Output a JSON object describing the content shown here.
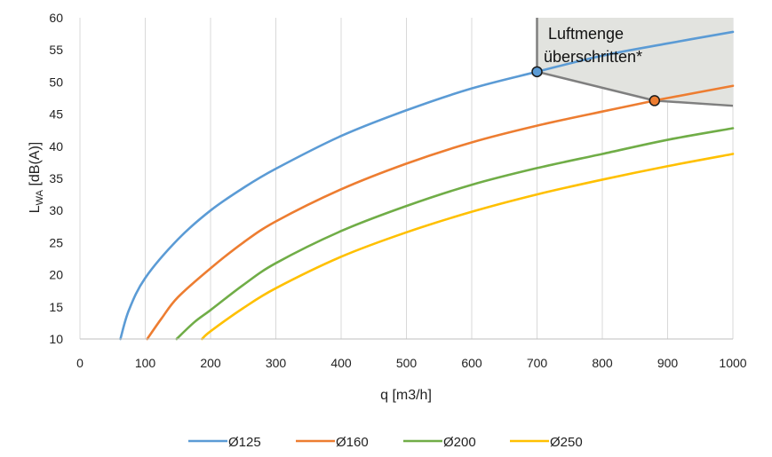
{
  "chart_data": {
    "type": "line",
    "xlabel": "q [m3/h]",
    "ylabel_main": "L",
    "ylabel_sub": "WA",
    "ylabel_rest": " [dB(A)]",
    "xlim": [
      0,
      1000
    ],
    "ylim": [
      10,
      60
    ],
    "x_ticks": [
      0,
      100,
      200,
      300,
      400,
      500,
      600,
      700,
      800,
      900,
      1000
    ],
    "y_ticks": [
      10,
      15,
      20,
      25,
      30,
      35,
      40,
      45,
      50,
      55,
      60
    ],
    "x_tick_labels": [
      "0",
      "100",
      "200",
      "300",
      "400",
      "500",
      "600",
      "700",
      "800",
      "900",
      "1000"
    ],
    "y_tick_labels": [
      "10",
      "15",
      "20",
      "25",
      "30",
      "35",
      "40",
      "45",
      "50",
      "55",
      "60"
    ],
    "grid": "vertical",
    "legend_position": "bottom",
    "series": [
      {
        "name": "Ø125",
        "color": "#5b9bd5",
        "x": [
          62,
          75,
          100,
          150,
          200,
          250,
          300,
          400,
          500,
          600,
          700,
          800,
          900,
          1000
        ],
        "y": [
          10,
          14.5,
          19.5,
          25.5,
          30,
          33.5,
          36.5,
          41.6,
          45.6,
          49,
          51.6,
          54.1,
          56,
          57.8
        ]
      },
      {
        "name": "Ø160",
        "color": "#ed7d31",
        "x": [
          103,
          125,
          150,
          200,
          250,
          300,
          400,
          500,
          600,
          700,
          800,
          880,
          900,
          1000
        ],
        "y": [
          10,
          13.2,
          16.5,
          21,
          25,
          28.3,
          33.3,
          37.3,
          40.6,
          43.2,
          45.4,
          47.1,
          47.5,
          49.4
        ]
      },
      {
        "name": "Ø200",
        "color": "#70ad47",
        "x": [
          148,
          175,
          200,
          250,
          300,
          400,
          500,
          600,
          700,
          800,
          900,
          1000
        ],
        "y": [
          10,
          12.6,
          14.5,
          18.4,
          21.8,
          26.8,
          30.7,
          34,
          36.6,
          38.8,
          41,
          42.8
        ]
      },
      {
        "name": "Ø250",
        "color": "#ffc000",
        "x": [
          187,
          200,
          250,
          300,
          400,
          500,
          600,
          700,
          800,
          900,
          1000
        ],
        "y": [
          10,
          11.2,
          14.8,
          17.9,
          22.8,
          26.6,
          29.8,
          32.5,
          34.8,
          36.9,
          38.8
        ]
      }
    ],
    "limit_region": {
      "fill": "#e2e3df",
      "border_color": "#7f7f7f",
      "label_line1": "Luftmenge",
      "label_line2": "überschritten*",
      "boundary": [
        [
          700,
          60
        ],
        [
          700,
          51.6
        ],
        [
          880,
          47.1
        ],
        [
          1000,
          46.3
        ]
      ],
      "markers": [
        {
          "x": 700,
          "y": 51.6,
          "color": "#5b9bd5"
        },
        {
          "x": 880,
          "y": 47.1,
          "color": "#ed7d31"
        }
      ]
    }
  }
}
